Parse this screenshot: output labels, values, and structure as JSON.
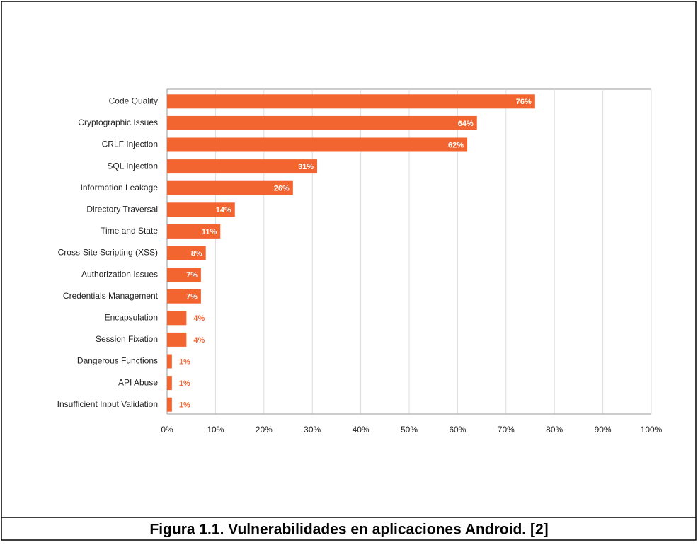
{
  "caption": "Figura 1.1. Vulnerabilidades en aplicaciones Android. [2]",
  "chart_data": {
    "type": "bar",
    "categories": [
      "Code Quality",
      "Cryptographic Issues",
      "CRLF Injection",
      "SQL Injection",
      "Information Leakage",
      "Directory Traversal",
      "Time and State",
      "Cross-Site Scripting (XSS)",
      "Authorization Issues",
      "Credentials Management",
      "Encapsulation",
      "Session Fixation",
      "Dangerous Functions",
      "API Abuse",
      "Insufficient Input Validation"
    ],
    "values": [
      76,
      64,
      62,
      31,
      26,
      14,
      11,
      8,
      7,
      7,
      4,
      4,
      1,
      1,
      1
    ],
    "value_labels": [
      "76%",
      "64%",
      "62%",
      "31%",
      "26%",
      "14%",
      "11%",
      "8%",
      "7%",
      "7%",
      "4%",
      "4%",
      "1%",
      "1%",
      "1%"
    ],
    "color": "#f26430",
    "xlim": [
      0,
      100
    ],
    "xticks": [
      {
        "value": 0,
        "label": "0%"
      },
      {
        "value": 10,
        "label": "10%"
      },
      {
        "value": 20,
        "label": "20%"
      },
      {
        "value": 30,
        "label": "30%"
      },
      {
        "value": 40,
        "label": "40%"
      },
      {
        "value": 50,
        "label": "50%"
      },
      {
        "value": 60,
        "label": "60%"
      },
      {
        "value": 70,
        "label": "70%"
      },
      {
        "value": 80,
        "label": "80%"
      },
      {
        "value": 90,
        "label": "90%"
      },
      {
        "value": 100,
        "label": "100%"
      }
    ],
    "grid": true
  }
}
